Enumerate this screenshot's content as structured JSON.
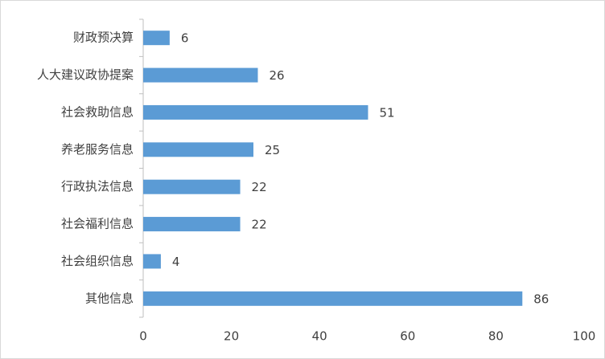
{
  "chart_data": {
    "type": "bar",
    "orientation": "horizontal",
    "categories": [
      "财政预决算",
      "人大建议政协提案",
      "社会救助信息",
      "养老服务信息",
      "行政执法信息",
      "社会福利信息",
      "社会组织信息",
      "其他信息"
    ],
    "values": [
      6,
      26,
      51,
      25,
      22,
      22,
      4,
      86
    ],
    "color": "#5b9bd5",
    "xlim": [
      0,
      100
    ],
    "xticks": [
      0,
      20,
      40,
      60,
      80,
      100
    ],
    "grid": false
  }
}
